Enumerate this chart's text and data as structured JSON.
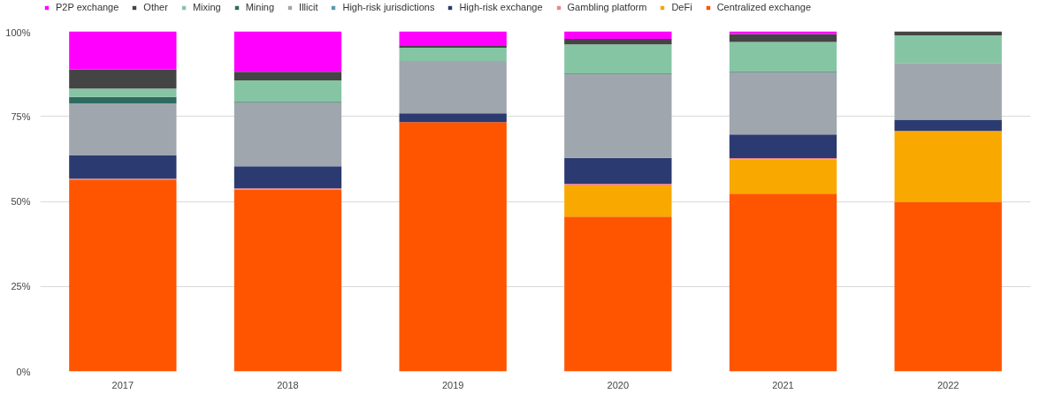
{
  "chart_data": {
    "type": "bar",
    "stacked": true,
    "categories": [
      "2017",
      "2018",
      "2019",
      "2020",
      "2021",
      "2022"
    ],
    "series": [
      {
        "name": "Centralized exchange",
        "color": "#ff5500",
        "values": [
          56.4,
          53.5,
          73.3,
          45.5,
          52.3,
          49.9
        ]
      },
      {
        "name": "DeFi",
        "color": "#f9a800",
        "values": [
          0,
          0,
          0,
          9.2,
          10.1,
          20.8
        ]
      },
      {
        "name": "Gambling platform",
        "color": "#e8898f",
        "values": [
          0.3,
          0.3,
          0,
          0.5,
          0.3,
          0
        ]
      },
      {
        "name": "High-risk exchange",
        "color": "#2b3a70",
        "values": [
          6.8,
          6.5,
          2.6,
          7.6,
          7.0,
          3.3
        ]
      },
      {
        "name": "High-risk jurisdictions",
        "color": "#5b9aa9",
        "values": [
          0,
          0,
          0,
          0,
          0,
          0
        ]
      },
      {
        "name": "Illicit",
        "color": "#a0a6ae",
        "values": [
          15.3,
          18.7,
          15.4,
          24.6,
          18.2,
          16.7
        ]
      },
      {
        "name": "Mining",
        "color": "#2e6b5e",
        "values": [
          1.9,
          0.3,
          0,
          0.2,
          0.2,
          0
        ]
      },
      {
        "name": "Mixing",
        "color": "#86c5a4",
        "values": [
          2.5,
          6.3,
          3.9,
          8.6,
          8.8,
          8.1
        ]
      },
      {
        "name": "Other",
        "color": "#444444",
        "values": [
          5.6,
          2.5,
          0.5,
          1.6,
          2.3,
          1.2
        ]
      },
      {
        "name": "P2P exchange",
        "color": "#ff00ff",
        "values": [
          11.2,
          11.9,
          4.3,
          2.2,
          0.8,
          0
        ]
      }
    ],
    "ylim": [
      0,
      100
    ],
    "yticks": [
      {
        "value": 0,
        "label": "0%"
      },
      {
        "value": 25,
        "label": "25%"
      },
      {
        "value": 50,
        "label": "50%"
      },
      {
        "value": 75,
        "label": "75%"
      },
      {
        "value": 100,
        "label": "100%"
      }
    ],
    "grid": "y",
    "legend": "top"
  }
}
